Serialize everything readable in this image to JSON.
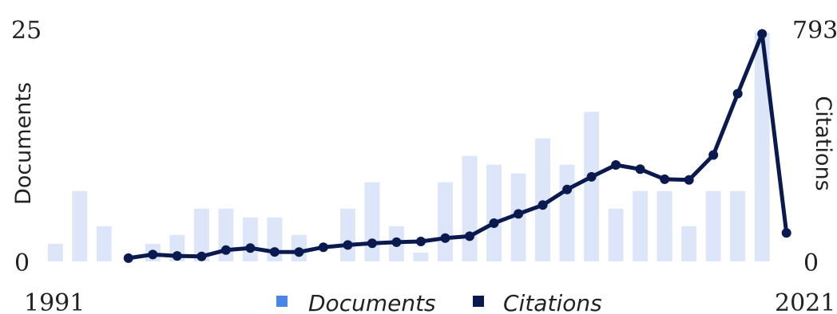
{
  "chart_data": {
    "type": "bar+line",
    "x_start_label": "1991",
    "x_end_label": "2021",
    "years": [
      1991,
      1992,
      1993,
      1994,
      1995,
      1996,
      1997,
      1998,
      1999,
      2000,
      2001,
      2002,
      2003,
      2004,
      2005,
      2006,
      2007,
      2008,
      2009,
      2010,
      2011,
      2012,
      2013,
      2014,
      2015,
      2016,
      2017,
      2018,
      2019,
      2020,
      2021
    ],
    "documents": [
      2,
      8,
      4,
      0,
      2,
      3,
      6,
      6,
      5,
      5,
      3,
      0,
      6,
      9,
      4,
      1,
      9,
      12,
      11,
      10,
      14,
      11,
      17,
      6,
      8,
      8,
      4,
      8,
      8,
      26,
      0
    ],
    "citations": [
      null,
      null,
      null,
      36,
      76,
      61,
      56,
      125,
      148,
      105,
      103,
      157,
      182,
      200,
      213,
      221,
      258,
      279,
      424,
      526,
      624,
      797,
      936,
      1068,
      1021,
      910,
      903,
      1178,
      1858,
      2520,
      316
    ],
    "y_left_label": "Documents",
    "y_right_label": "Citations",
    "y_left_min_label": "0",
    "y_left_max_label": "25",
    "y_right_min_label": "0",
    "y_right_max_label": "793",
    "legend": [
      {
        "label": "Documents",
        "color": "#4a86e8"
      },
      {
        "label": "Citations",
        "color": "#0a1a4f"
      }
    ],
    "bar_color": "#dce6f8",
    "line_color": "#0a1a4f"
  }
}
